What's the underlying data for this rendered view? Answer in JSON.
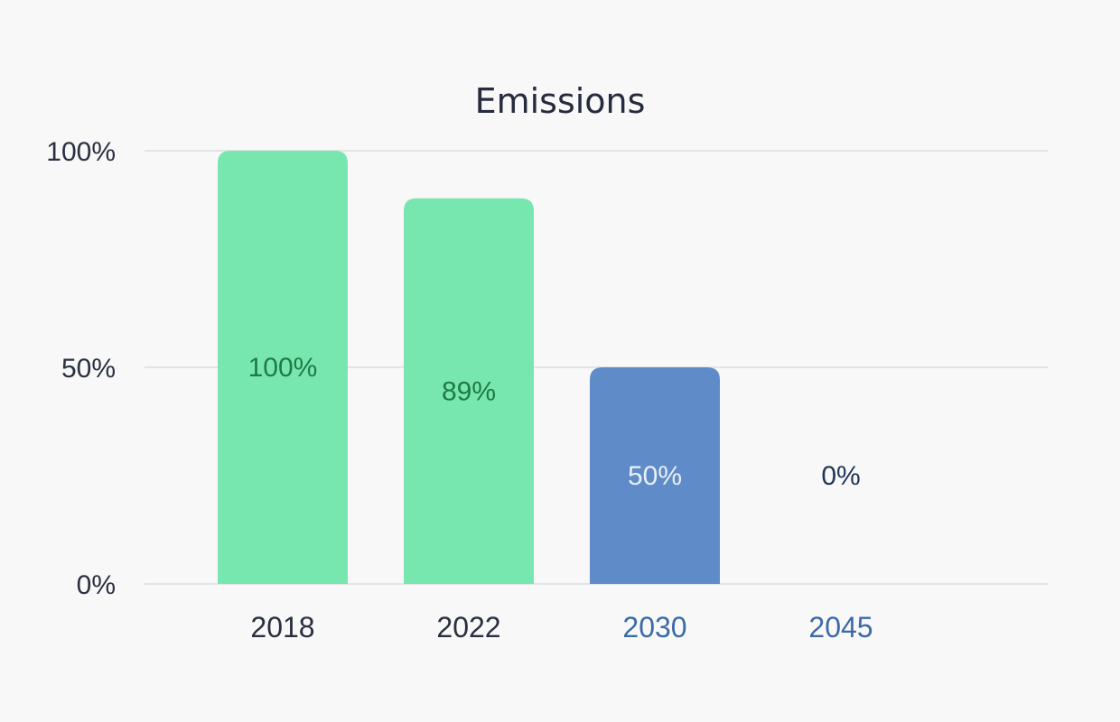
{
  "chart_data": {
    "type": "bar",
    "title": "Emissions",
    "xlabel": "",
    "ylabel": "",
    "categories": [
      "2018",
      "2022",
      "2030",
      "2045"
    ],
    "values": [
      100,
      89,
      50,
      0
    ],
    "data_labels": [
      "100%",
      "89%",
      "50%",
      "0%"
    ],
    "y_ticks": [
      "0%",
      "50%",
      "100%"
    ],
    "y_tick_values": [
      0,
      50,
      100
    ],
    "ylim": [
      0,
      100
    ],
    "grid": true,
    "legend": "none",
    "colors": {
      "actual_bar": "#78e7af",
      "target_bar": "#5f8bc8",
      "actual_label": "#1f7a45",
      "target_label": "#e9eff8",
      "empty_label": "#1e3557",
      "actual_tick": "#2a2f3f",
      "target_tick": "#3c6aa6"
    },
    "bar_kind": [
      "actual",
      "actual",
      "target",
      "target"
    ]
  }
}
